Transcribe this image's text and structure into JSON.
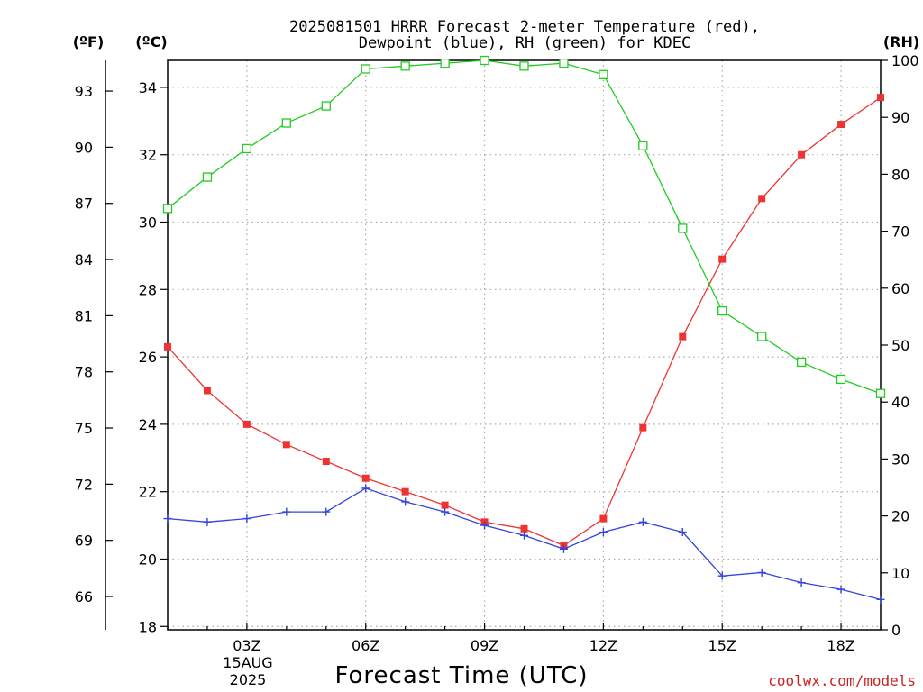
{
  "chart_data": {
    "type": "line",
    "title_line1": "2025081501 HRRR Forecast 2-meter Temperature (red),",
    "title_line2": "Dewpoint (blue), RH (green) for KDEC",
    "xlabel": "Forecast Time (UTC)",
    "credit": "coolwx.com/models",
    "units": {
      "f": "(ºF)",
      "c": "(ºC)",
      "rh": "(RH)"
    },
    "date_label": [
      "15AUG",
      "2025"
    ],
    "x_hours": [
      1,
      2,
      3,
      4,
      5,
      6,
      7,
      8,
      9,
      10,
      11,
      12,
      13,
      14,
      15,
      16,
      17,
      18,
      19
    ],
    "xlim": [
      1,
      19
    ],
    "x_ticks": [
      {
        "hour": 3,
        "label": "03Z"
      },
      {
        "hour": 6,
        "label": "06Z"
      },
      {
        "hour": 9,
        "label": "09Z"
      },
      {
        "hour": 12,
        "label": "12Z"
      },
      {
        "hour": 15,
        "label": "15Z"
      },
      {
        "hour": 18,
        "label": "18Z"
      }
    ],
    "ylim_c": [
      17.9,
      34.8
    ],
    "yticks_c": [
      18,
      20,
      22,
      24,
      26,
      28,
      30,
      32,
      34
    ],
    "yticks_f": [
      66,
      69,
      72,
      75,
      78,
      81,
      84,
      87,
      90,
      93
    ],
    "ylim_rh": [
      0,
      100
    ],
    "yticks_rh": [
      0,
      10,
      20,
      30,
      40,
      50,
      60,
      70,
      80,
      90,
      100
    ],
    "grid": true,
    "series": [
      {
        "name": "Temperature",
        "axis": "c",
        "color": "#ee3333",
        "marker": "filled-square",
        "values": [
          26.3,
          25.0,
          24.0,
          23.4,
          22.9,
          22.4,
          22.0,
          21.6,
          21.1,
          20.9,
          20.4,
          21.2,
          23.9,
          26.6,
          28.9,
          30.7,
          32.0,
          32.9,
          33.7
        ]
      },
      {
        "name": "Dewpoint",
        "axis": "c",
        "color": "#3344dd",
        "marker": "plus",
        "values": [
          21.2,
          21.1,
          21.2,
          21.4,
          21.4,
          22.1,
          21.7,
          21.4,
          21.0,
          20.7,
          20.3,
          20.8,
          21.1,
          20.8,
          19.5,
          19.6,
          19.3,
          19.1,
          18.8
        ]
      },
      {
        "name": "RH",
        "axis": "rh",
        "color": "#22cc22",
        "marker": "open-square",
        "values": [
          74,
          79.5,
          84.5,
          89,
          92,
          98.5,
          99,
          99.5,
          100,
          99,
          99.5,
          97.5,
          85,
          70.5,
          56,
          51.5,
          47,
          44,
          41.5
        ]
      }
    ]
  }
}
